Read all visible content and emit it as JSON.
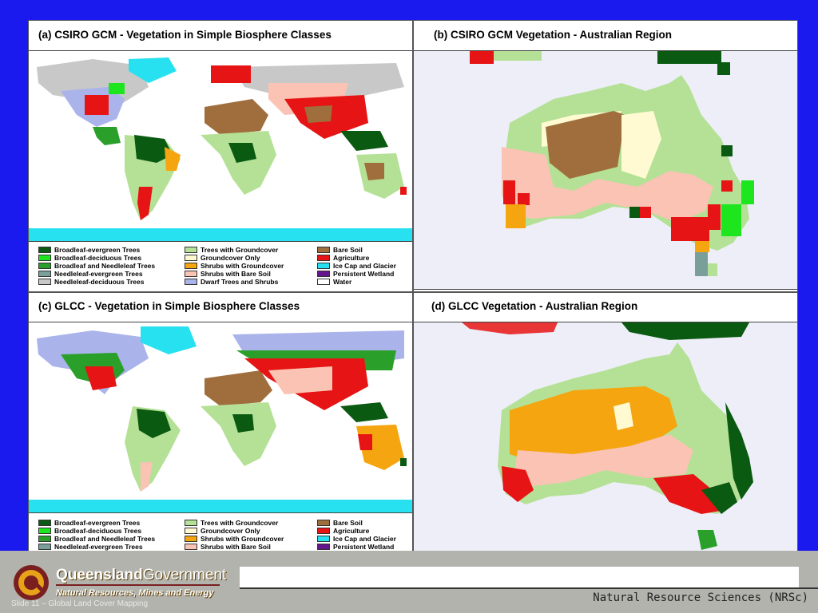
{
  "panels": {
    "a": {
      "title": "(a) CSIRO GCM - Vegetation in Simple Biosphere Classes"
    },
    "b": {
      "title": "(b) CSIRO GCM Vegetation - Australian Region"
    },
    "c": {
      "title": "(c) GLCC - Vegetation in Simple Biosphere Classes"
    },
    "d": {
      "title": "(d) GLCC Vegetation - Australian Region"
    }
  },
  "legend": {
    "col1": [
      {
        "label": "Broadleaf-evergreen Trees",
        "color": "#0b5a12"
      },
      {
        "label": "Broadleaf-deciduous Trees",
        "color": "#1ee61e"
      },
      {
        "label": "Broadleaf and Needleleaf Trees",
        "color": "#2aa02a"
      },
      {
        "label": "Needleleaf-evergreen Trees",
        "color": "#7a9e9a"
      },
      {
        "label": "Needleleaf-deciduous Trees",
        "color": "#c8c8c8"
      }
    ],
    "col2": [
      {
        "label": "Trees with Groundcover",
        "color": "#b4e196"
      },
      {
        "label": "Groundcover Only",
        "color": "#fffad2"
      },
      {
        "label": "Shrubs with Groundcover",
        "color": "#f5a50f"
      },
      {
        "label": "Shrubs with Bare Soil",
        "color": "#fac3b4"
      },
      {
        "label": "Dwarf Trees and Shrubs",
        "color": "#aab4eb"
      }
    ],
    "col3": [
      {
        "label": "Bare Soil",
        "color": "#a06e3c"
      },
      {
        "label": "Agriculture",
        "color": "#e61414"
      },
      {
        "label": "Ice Cap and Glacier",
        "color": "#28e1f0"
      },
      {
        "label": "Persistent Wetland",
        "color": "#64148c"
      },
      {
        "label": "Water",
        "color": "#ffffff"
      }
    ]
  },
  "footer": {
    "logo_word1": "Queensland",
    "logo_word2": "Government",
    "logo_sub": "Natural Resources, Mines and Energy",
    "slide_label": "Slide 11 – Global Land Cover Mapping",
    "org": "Natural Resource Sciences (NRSc)"
  }
}
